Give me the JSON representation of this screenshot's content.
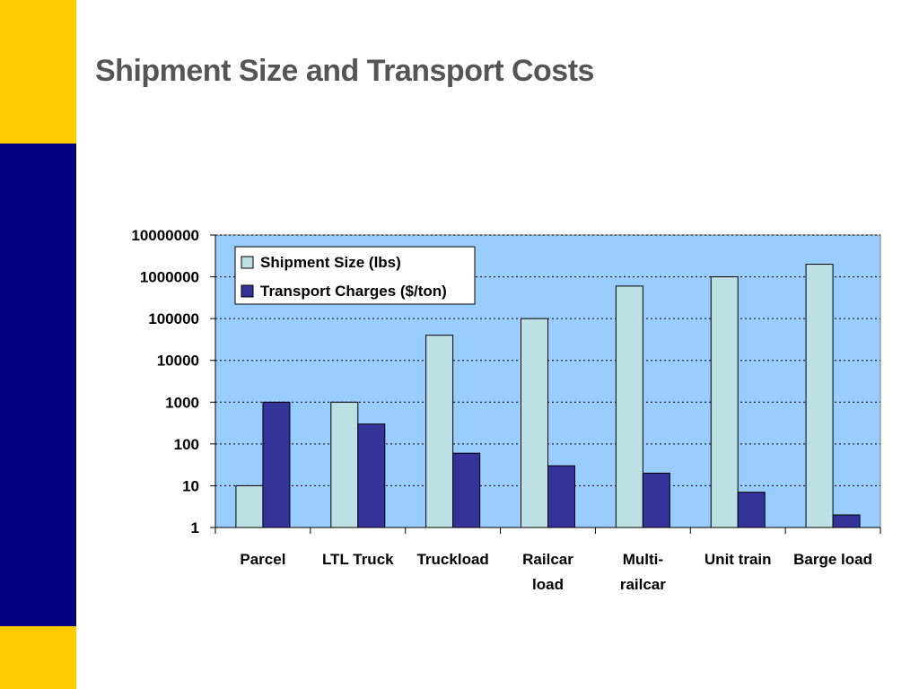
{
  "slide": {
    "title": "Shipment Size and Transport Costs",
    "colors": {
      "accent_yellow": "#FFCC00",
      "accent_navy": "#000080",
      "title_gray": "#555555"
    }
  },
  "chart_data": {
    "type": "bar",
    "categories": [
      "Parcel",
      "LTL Truck",
      "Truckload",
      "Railcar load",
      "Multi-railcar",
      "Unit train",
      "Barge load"
    ],
    "category_lines": [
      [
        "Parcel"
      ],
      [
        "LTL Truck"
      ],
      [
        "Truckload"
      ],
      [
        "Railcar",
        "load"
      ],
      [
        "Multi-",
        "railcar"
      ],
      [
        "Unit train"
      ],
      [
        "Barge load"
      ]
    ],
    "series": [
      {
        "name": "Shipment Size (lbs)",
        "values": [
          10,
          1000,
          40000,
          100000,
          600000,
          1000000,
          2000000
        ],
        "color": "#BDE0E4"
      },
      {
        "name": "Transport Charges ($/ton)",
        "values": [
          1000,
          300,
          60,
          30,
          20,
          7,
          2
        ],
        "color": "#333399"
      }
    ],
    "y_scale": "log",
    "ylim": [
      1,
      10000000
    ],
    "y_tick_labels": [
      "1",
      "10",
      "100",
      "1000",
      "10000",
      "100000",
      "1000000",
      "10000000"
    ],
    "grid": true,
    "plot_background": "#99CCFF",
    "legend_position": "top-left",
    "title": "",
    "xlabel": "",
    "ylabel": ""
  }
}
